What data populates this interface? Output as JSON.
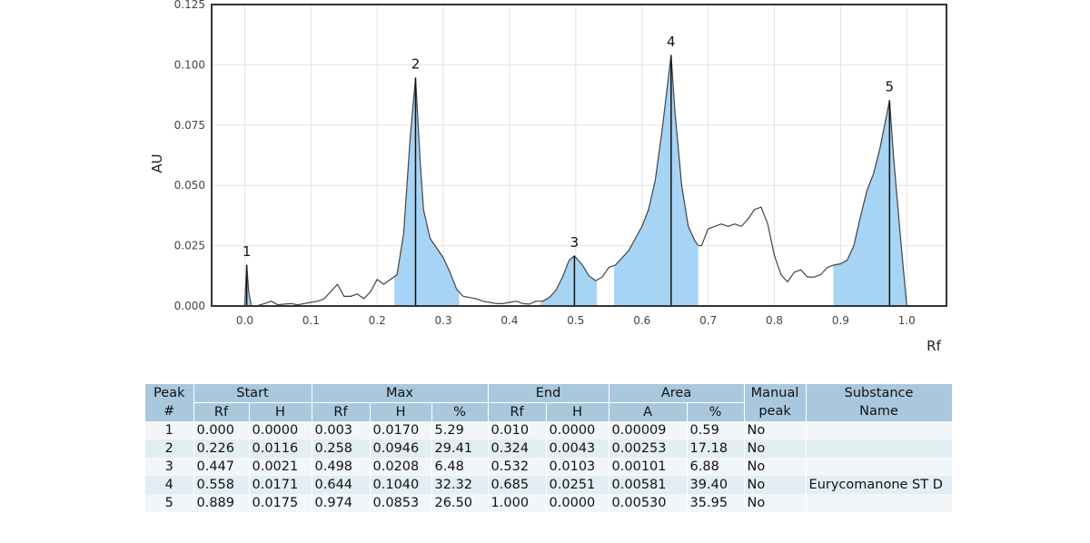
{
  "chart_data": {
    "type": "line",
    "xlabel": "Rf",
    "ylabel": "AU",
    "xlim": [
      -0.05,
      1.06
    ],
    "ylim": [
      0,
      0.125
    ],
    "x_ticks": [
      "0.0",
      "0.1",
      "0.2",
      "0.3",
      "0.4",
      "0.5",
      "0.6",
      "0.7",
      "0.8",
      "0.9",
      "1.0"
    ],
    "y_ticks": [
      "0.000",
      "0.025",
      "0.050",
      "0.075",
      "0.100",
      "0.125"
    ],
    "grid": true,
    "line_color": "#444444",
    "fill_color": "#a7d3f5",
    "series": [
      {
        "x": [
          -0.05,
          0.0,
          0.003,
          0.006,
          0.01,
          0.02,
          0.03,
          0.04,
          0.05,
          0.06,
          0.07,
          0.08,
          0.09,
          0.1,
          0.11,
          0.12,
          0.13,
          0.14,
          0.15,
          0.16,
          0.17,
          0.18,
          0.19,
          0.2,
          0.21,
          0.22,
          0.23,
          0.24,
          0.25,
          0.258,
          0.265,
          0.27,
          0.28,
          0.29,
          0.3,
          0.31,
          0.32,
          0.33,
          0.34,
          0.35,
          0.36,
          0.37,
          0.38,
          0.39,
          0.4,
          0.41,
          0.42,
          0.43,
          0.44,
          0.45,
          0.46,
          0.47,
          0.48,
          0.49,
          0.498,
          0.51,
          0.52,
          0.53,
          0.54,
          0.55,
          0.56,
          0.57,
          0.58,
          0.59,
          0.6,
          0.61,
          0.62,
          0.63,
          0.644,
          0.65,
          0.66,
          0.67,
          0.68,
          0.685,
          0.69,
          0.7,
          0.71,
          0.72,
          0.73,
          0.74,
          0.75,
          0.76,
          0.77,
          0.78,
          0.79,
          0.8,
          0.81,
          0.82,
          0.83,
          0.84,
          0.85,
          0.86,
          0.87,
          0.88,
          0.89,
          0.9,
          0.91,
          0.92,
          0.93,
          0.94,
          0.95,
          0.96,
          0.974,
          0.98,
          0.99,
          1.0
        ],
        "y": [
          0.0,
          0.0,
          0.017,
          0.006,
          0.0,
          0.0002,
          0.001,
          0.002,
          0.0005,
          0.0008,
          0.001,
          0.0005,
          0.001,
          0.0015,
          0.002,
          0.003,
          0.006,
          0.009,
          0.004,
          0.004,
          0.005,
          0.003,
          0.006,
          0.011,
          0.009,
          0.011,
          0.013,
          0.03,
          0.07,
          0.0946,
          0.06,
          0.04,
          0.028,
          0.024,
          0.02,
          0.014,
          0.007,
          0.004,
          0.0035,
          0.003,
          0.002,
          0.0015,
          0.001,
          0.001,
          0.0015,
          0.002,
          0.001,
          0.0008,
          0.002,
          0.002,
          0.0035,
          0.0065,
          0.012,
          0.019,
          0.0208,
          0.017,
          0.0125,
          0.0105,
          0.012,
          0.016,
          0.017,
          0.02,
          0.023,
          0.028,
          0.033,
          0.04,
          0.052,
          0.072,
          0.104,
          0.08,
          0.05,
          0.033,
          0.027,
          0.0251,
          0.025,
          0.032,
          0.033,
          0.034,
          0.033,
          0.034,
          0.033,
          0.036,
          0.04,
          0.041,
          0.034,
          0.021,
          0.013,
          0.01,
          0.014,
          0.015,
          0.012,
          0.012,
          0.013,
          0.016,
          0.017,
          0.0175,
          0.019,
          0.025,
          0.037,
          0.048,
          0.055,
          0.066,
          0.0853,
          0.062,
          0.03,
          0.0
        ],
        "peaks": [
          {
            "label": "1",
            "start": 0.0,
            "max": 0.003,
            "end": 0.01,
            "height": 0.017
          },
          {
            "label": "2",
            "start": 0.226,
            "max": 0.258,
            "end": 0.324,
            "height": 0.0946
          },
          {
            "label": "3",
            "start": 0.447,
            "max": 0.498,
            "end": 0.532,
            "height": 0.0208
          },
          {
            "label": "4",
            "start": 0.558,
            "max": 0.644,
            "end": 0.685,
            "height": 0.104
          },
          {
            "label": "5",
            "start": 0.889,
            "max": 0.974,
            "end": 1.0,
            "height": 0.0853
          }
        ]
      }
    ]
  },
  "table": {
    "headers_top": {
      "peak": "Peak",
      "start": "Start",
      "max": "Max",
      "end": "End",
      "area": "Area",
      "manual": "Manual",
      "substance": "Substance"
    },
    "headers_sub": {
      "peak": "#",
      "start_rf": "Rf",
      "start_h": "H",
      "max_rf": "Rf",
      "max_h": "H",
      "max_pct": "%",
      "end_rf": "Rf",
      "end_h": "H",
      "area_a": "A",
      "area_pct": "%",
      "manual": "peak",
      "substance": "Name"
    },
    "rows": [
      {
        "peak": "1",
        "start_rf": "0.000",
        "start_h": "0.0000",
        "max_rf": "0.003",
        "max_h": "0.0170",
        "max_pct": "5.29",
        "end_rf": "0.010",
        "end_h": "0.0000",
        "area_a": "0.00009",
        "area_pct": "0.59",
        "manual": "No",
        "substance": ""
      },
      {
        "peak": "2",
        "start_rf": "0.226",
        "start_h": "0.0116",
        "max_rf": "0.258",
        "max_h": "0.0946",
        "max_pct": "29.41",
        "end_rf": "0.324",
        "end_h": "0.0043",
        "area_a": "0.00253",
        "area_pct": "17.18",
        "manual": "No",
        "substance": ""
      },
      {
        "peak": "3",
        "start_rf": "0.447",
        "start_h": "0.0021",
        "max_rf": "0.498",
        "max_h": "0.0208",
        "max_pct": "6.48",
        "end_rf": "0.532",
        "end_h": "0.0103",
        "area_a": "0.00101",
        "area_pct": "6.88",
        "manual": "No",
        "substance": ""
      },
      {
        "peak": "4",
        "start_rf": "0.558",
        "start_h": "0.0171",
        "max_rf": "0.644",
        "max_h": "0.1040",
        "max_pct": "32.32",
        "end_rf": "0.685",
        "end_h": "0.0251",
        "area_a": "0.00581",
        "area_pct": "39.40",
        "manual": "No",
        "substance": "Eurycomanone ST D"
      },
      {
        "peak": "5",
        "start_rf": "0.889",
        "start_h": "0.0175",
        "max_rf": "0.974",
        "max_h": "0.0853",
        "max_pct": "26.50",
        "end_rf": "1.000",
        "end_h": "0.0000",
        "area_a": "0.00530",
        "area_pct": "35.95",
        "manual": "No",
        "substance": ""
      }
    ]
  }
}
